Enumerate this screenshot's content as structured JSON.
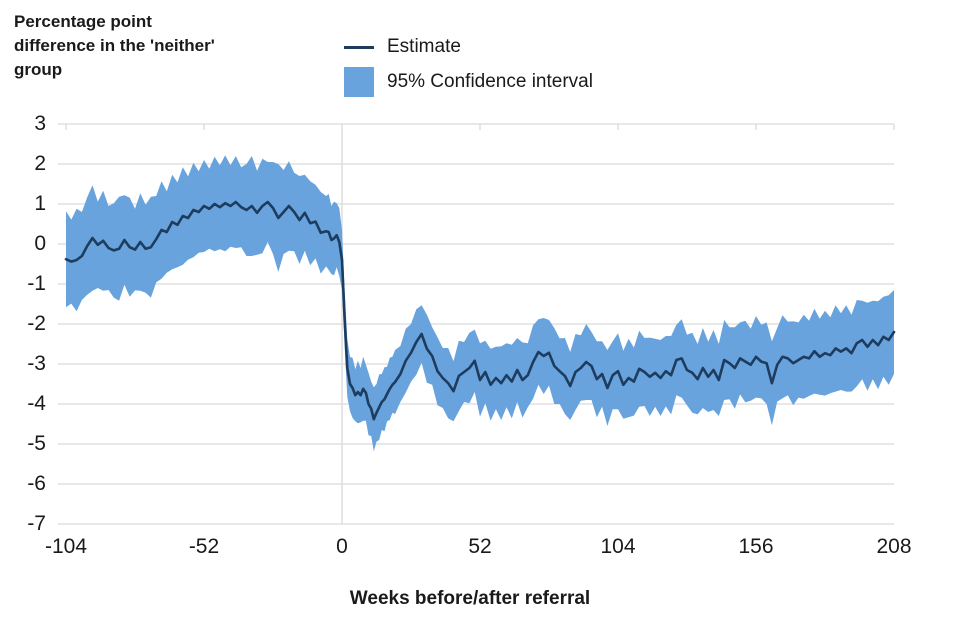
{
  "title": "Percentage point\ndifference in the 'neither'\ngroup",
  "legend": {
    "estimate_label": "Estimate",
    "ci_label": "95% Confidence interval"
  },
  "colors": {
    "estimate_line": "#1d3c5e",
    "ci_band": "#68a3de",
    "gridline": "#d9d9d9",
    "text": "#1a1a1a",
    "background": "#ffffff"
  },
  "chart_data": {
    "type": "line",
    "title": "Percentage point difference in the 'neither' group",
    "xlabel": "Weeks before/after referral",
    "ylabel": "Percentage point difference in the 'neither' group",
    "xlim": [
      -104,
      208
    ],
    "ylim": [
      -7,
      3
    ],
    "grid": "horizontal, plus vertical line at week 0 and small top ticks at x tick positions",
    "legend_position": "top-center",
    "x_ticks": [
      -104,
      -52,
      0,
      52,
      104,
      156,
      208
    ],
    "x_tick_labels": [
      "-104",
      "-52",
      "0",
      "52",
      "104",
      "156",
      "208"
    ],
    "y_ticks": [
      3,
      2,
      1,
      0,
      -1,
      -2,
      -3,
      -4,
      -5,
      -6,
      -7
    ],
    "y_tick_labels": [
      "3",
      "2",
      "1",
      "0",
      "-1",
      "-2",
      "-3",
      "-4",
      "-5",
      "-6",
      "-7"
    ],
    "weeks": [
      -104,
      -102,
      -100,
      -98,
      -96,
      -94,
      -92,
      -90,
      -88,
      -86,
      -84,
      -82,
      -80,
      -78,
      -76,
      -74,
      -72,
      -70,
      -68,
      -66,
      -64,
      -62,
      -60,
      -58,
      -56,
      -54,
      -52,
      -50,
      -48,
      -46,
      -44,
      -42,
      -40,
      -38,
      -36,
      -34,
      -32,
      -30,
      -28,
      -26,
      -24,
      -22,
      -20,
      -18,
      -16,
      -14,
      -12,
      -10,
      -8,
      -6,
      -5,
      -4,
      -3,
      -2,
      -1,
      0,
      1,
      2,
      3,
      4,
      5,
      6,
      7,
      8,
      9,
      10,
      11,
      12,
      13,
      14,
      15,
      16,
      17,
      18,
      19,
      20,
      22,
      24,
      26,
      28,
      30,
      32,
      34,
      36,
      38,
      40,
      42,
      44,
      46,
      48,
      50,
      52,
      54,
      56,
      58,
      60,
      62,
      64,
      66,
      68,
      70,
      72,
      74,
      76,
      78,
      80,
      82,
      84,
      86,
      88,
      90,
      92,
      94,
      96,
      98,
      100,
      102,
      104,
      106,
      108,
      110,
      112,
      114,
      116,
      118,
      120,
      122,
      124,
      126,
      128,
      130,
      132,
      134,
      136,
      138,
      140,
      142,
      144,
      146,
      148,
      150,
      152,
      154,
      156,
      158,
      160,
      162,
      164,
      166,
      168,
      170,
      172,
      174,
      176,
      178,
      180,
      182,
      184,
      186,
      188,
      190,
      192,
      194,
      196,
      198,
      200,
      202,
      204,
      206,
      208
    ],
    "series": [
      {
        "name": "Estimate",
        "style": "line",
        "values": [
          -0.38,
          -0.44,
          -0.4,
          -0.3,
          -0.05,
          0.15,
          -0.02,
          0.08,
          -0.1,
          -0.16,
          -0.12,
          0.1,
          -0.08,
          -0.14,
          0.05,
          -0.12,
          -0.08,
          0.12,
          0.35,
          0.3,
          0.55,
          0.48,
          0.7,
          0.65,
          0.85,
          0.8,
          0.95,
          0.88,
          1.0,
          0.92,
          1.02,
          0.95,
          1.05,
          0.92,
          0.85,
          0.95,
          0.78,
          0.95,
          1.05,
          0.9,
          0.65,
          0.8,
          0.95,
          0.8,
          0.6,
          0.78,
          0.52,
          0.56,
          0.28,
          0.32,
          0.3,
          0.1,
          0.14,
          0.22,
          0.05,
          -0.4,
          -1.9,
          -3.1,
          -3.5,
          -3.6,
          -3.78,
          -3.7,
          -3.78,
          -3.62,
          -3.72,
          -4.0,
          -4.12,
          -4.38,
          -4.22,
          -4.08,
          -3.95,
          -3.88,
          -3.75,
          -3.62,
          -3.52,
          -3.45,
          -3.25,
          -2.92,
          -2.72,
          -2.45,
          -2.25,
          -2.62,
          -2.8,
          -3.18,
          -3.35,
          -3.48,
          -3.68,
          -3.3,
          -3.2,
          -3.1,
          -2.92,
          -3.4,
          -3.2,
          -3.52,
          -3.35,
          -3.48,
          -3.28,
          -3.44,
          -3.15,
          -3.4,
          -3.28,
          -2.95,
          -2.7,
          -2.8,
          -2.72,
          -3.05,
          -3.18,
          -3.3,
          -3.55,
          -3.2,
          -3.1,
          -2.95,
          -3.05,
          -3.38,
          -3.25,
          -3.6,
          -3.28,
          -3.18,
          -3.52,
          -3.35,
          -3.44,
          -3.12,
          -3.2,
          -3.32,
          -3.22,
          -3.35,
          -3.18,
          -3.28,
          -2.9,
          -2.86,
          -3.15,
          -3.22,
          -3.38,
          -3.1,
          -3.32,
          -3.15,
          -3.4,
          -2.9,
          -2.98,
          -3.1,
          -2.86,
          -2.94,
          -3.02,
          -2.82,
          -2.94,
          -2.98,
          -3.48,
          -3.02,
          -2.82,
          -2.86,
          -2.98,
          -2.9,
          -2.82,
          -2.86,
          -2.68,
          -2.82,
          -2.73,
          -2.78,
          -2.61,
          -2.69,
          -2.61,
          -2.73,
          -2.48,
          -2.4,
          -2.57,
          -2.4,
          -2.53,
          -2.32,
          -2.4,
          -2.2
        ]
      },
      {
        "name": "95% Confidence interval",
        "style": "band",
        "note": "bounds = Estimate value minus/plus halfwidth at each week",
        "halfwidth": [
          1.2,
          1.05,
          1.28,
          1.1,
          1.22,
          1.32,
          1.08,
          1.25,
          1.05,
          1.18,
          1.3,
          1.12,
          1.24,
          1.02,
          1.22,
          1.1,
          1.26,
          1.08,
          1.22,
          1.02,
          1.18,
          1.06,
          1.22,
          1.04,
          1.18,
          1.02,
          1.15,
          1.0,
          1.18,
          1.05,
          1.2,
          1.02,
          1.15,
          1.0,
          1.15,
          1.25,
          1.05,
          1.18,
          1.0,
          1.15,
          1.35,
          1.05,
          1.12,
          0.98,
          1.1,
          0.95,
          1.05,
          0.92,
          1.02,
          0.88,
          0.95,
          0.85,
          0.92,
          0.8,
          0.85,
          0.75,
          0.7,
          0.72,
          0.68,
          0.75,
          0.65,
          0.78,
          0.68,
          0.8,
          0.7,
          0.78,
          0.68,
          0.8,
          0.72,
          0.82,
          0.7,
          0.8,
          0.68,
          0.78,
          0.7,
          0.8,
          0.7,
          0.8,
          0.72,
          0.82,
          0.72,
          0.85,
          0.72,
          0.85,
          0.75,
          0.88,
          0.75,
          0.88,
          0.75,
          0.88,
          0.78,
          0.92,
          0.78,
          0.9,
          0.78,
          0.92,
          0.8,
          0.92,
          0.8,
          0.94,
          0.8,
          0.92,
          0.82,
          0.95,
          0.82,
          0.95,
          0.82,
          0.95,
          0.85,
          0.95,
          0.82,
          0.95,
          0.85,
          0.95,
          0.82,
          0.95,
          0.85,
          0.95,
          0.85,
          0.98,
          0.85,
          0.95,
          0.85,
          0.98,
          0.85,
          0.95,
          0.88,
          0.98,
          0.88,
          0.98,
          0.88,
          1.0,
          0.88,
          1.0,
          0.88,
          1.0,
          0.9,
          1.0,
          0.9,
          1.02,
          0.9,
          1.02,
          0.9,
          1.02,
          0.92,
          1.02,
          1.05,
          0.92,
          1.04,
          0.92,
          1.05,
          0.94,
          1.05,
          0.94,
          1.06,
          0.95,
          1.06,
          0.95,
          1.08,
          0.96,
          1.08,
          0.96,
          1.08,
          0.98,
          1.1,
          0.98,
          1.1,
          1.0,
          1.12,
          1.05
        ]
      }
    ]
  }
}
